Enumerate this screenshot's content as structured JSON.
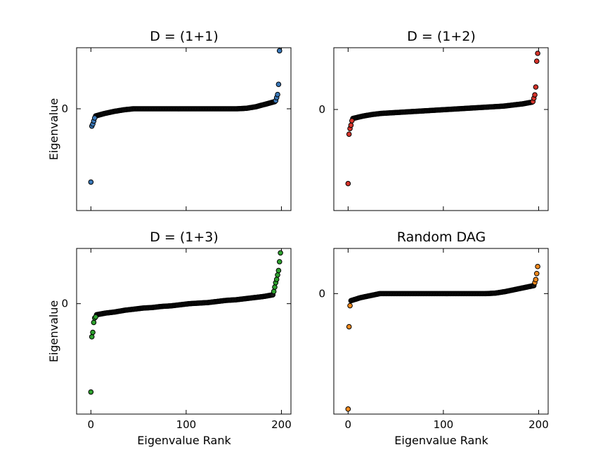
{
  "figure": {
    "xlabel": "Eigenvalue Rank",
    "ylabel": "Eigenvalue"
  },
  "chart_data": [
    {
      "type": "scatter",
      "title": "D = (1+1)",
      "color": "#3a78b8",
      "xlabel": "",
      "ylabel": "Eigenvalue",
      "xlim": [
        -15,
        210
      ],
      "ylim": [
        -1.0,
        0.6
      ],
      "x_ticks": [
        0,
        100,
        200
      ],
      "y_ticks": [
        {
          "value": 0,
          "label": "0"
        }
      ],
      "edge_x": [
        0,
        1,
        2,
        3,
        4,
        194,
        195,
        196,
        197,
        198
      ],
      "edge_y": [
        -0.72,
        -0.17,
        -0.15,
        -0.12,
        -0.09,
        0.08,
        0.11,
        0.14,
        0.24,
        0.57
      ],
      "bulk": {
        "x_start": 5,
        "x_end": 193,
        "values": [
          -0.07,
          -0.045,
          -0.025,
          -0.01,
          0.0,
          0.0,
          0.0,
          0.0,
          0.0,
          0.0,
          0.0,
          0.0,
          0.0,
          0.0,
          0.0,
          0.0,
          0.005,
          0.02,
          0.045,
          0.07
        ]
      }
    },
    {
      "type": "scatter",
      "title": "D = (1+2)",
      "color": "#d6342b",
      "xlabel": "",
      "ylabel": "",
      "xlim": [
        -15,
        210
      ],
      "ylim": [
        -0.9,
        0.55
      ],
      "x_ticks": [
        0,
        100,
        200
      ],
      "y_ticks": [
        {
          "value": 0,
          "label": "0"
        }
      ],
      "edge_x": [
        0,
        1,
        2,
        3,
        4,
        194,
        195,
        196,
        197,
        198,
        199
      ],
      "edge_y": [
        -0.66,
        -0.22,
        -0.17,
        -0.14,
        -0.1,
        0.07,
        0.1,
        0.13,
        0.2,
        0.43,
        0.5
      ],
      "bulk": {
        "x_start": 5,
        "x_end": 193,
        "values": [
          -0.08,
          -0.06,
          -0.045,
          -0.035,
          -0.03,
          -0.025,
          -0.02,
          -0.015,
          -0.01,
          -0.005,
          0.0,
          0.005,
          0.01,
          0.015,
          0.02,
          0.025,
          0.03,
          0.04,
          0.05,
          0.065
        ]
      }
    },
    {
      "type": "scatter",
      "title": "D = (1+3)",
      "color": "#2fa12f",
      "xlabel": "Eigenvalue Rank",
      "ylabel": "Eigenvalue",
      "xlim": [
        -15,
        210
      ],
      "ylim": [
        -1.0,
        0.5
      ],
      "x_ticks": [
        0,
        100,
        200
      ],
      "y_ticks": [
        {
          "value": 0,
          "label": "0"
        }
      ],
      "edge_x": [
        0,
        1,
        2,
        3,
        4,
        5,
        192,
        193,
        194,
        195,
        196,
        197,
        198,
        199
      ],
      "edge_y": [
        -0.8,
        -0.3,
        -0.26,
        -0.17,
        -0.13,
        -0.12,
        0.11,
        0.15,
        0.19,
        0.22,
        0.26,
        0.3,
        0.38,
        0.46
      ],
      "bulk": {
        "x_start": 6,
        "x_end": 191,
        "values": [
          -0.1,
          -0.085,
          -0.075,
          -0.06,
          -0.05,
          -0.04,
          -0.035,
          -0.025,
          -0.02,
          -0.01,
          0.0,
          0.005,
          0.01,
          0.02,
          0.03,
          0.035,
          0.045,
          0.055,
          0.065,
          0.08
        ]
      }
    },
    {
      "type": "scatter",
      "title": "Random DAG",
      "color": "#f28a1e",
      "xlabel": "Eigenvalue Rank",
      "ylabel": "",
      "xlim": [
        -15,
        210
      ],
      "ylim": [
        -1.2,
        0.45
      ],
      "x_ticks": [
        0,
        100,
        200
      ],
      "y_ticks": [
        {
          "value": 0,
          "label": "0"
        }
      ],
      "edge_x": [
        0,
        1,
        2,
        196,
        197,
        198,
        199
      ],
      "edge_y": [
        -1.15,
        -0.33,
        -0.12,
        0.11,
        0.14,
        0.2,
        0.27
      ],
      "bulk": {
        "x_start": 3,
        "x_end": 195,
        "values": [
          -0.07,
          -0.04,
          -0.02,
          0.0,
          0.0,
          0.0,
          0.0,
          0.0,
          0.0,
          0.0,
          0.0,
          0.0,
          0.0,
          0.0,
          0.0,
          0.005,
          0.02,
          0.04,
          0.06,
          0.08
        ]
      }
    }
  ]
}
